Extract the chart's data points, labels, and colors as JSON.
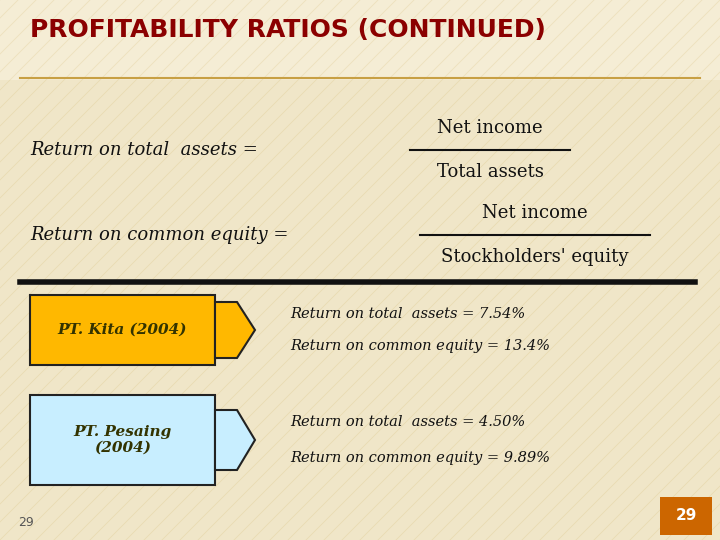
{
  "title": "PROFITABILITY RATIOS (CONTINUED)",
  "title_color": "#8B0000",
  "bg_color": "#F0E6C8",
  "title_fontsize": 18,
  "formula1_left": "Return on total  assets =",
  "formula1_num": "Net income",
  "formula1_den": "Total assets",
  "formula2_left": "Return on common equity =",
  "formula2_num": "Net income",
  "formula2_den": "Stockholders' equity",
  "kita_label": "PT. Kita (2004)",
  "kita_box_color": "#FFB800",
  "kita_text_color": "#333300",
  "kita_result1": "Return on total  assets = 7.54%",
  "kita_result2": "Return on common equity = 13.4%",
  "pesaing_label": "PT. Pesaing\n(2004)",
  "pesaing_box_color": "#C8EEFF",
  "pesaing_text_color": "#333300",
  "pesaing_result1": "Return on total  assets = 4.50%",
  "pesaing_result2": "Return on common equity = 9.89%",
  "page_num": "29",
  "page_num_bg": "#CC6600",
  "divider_color": "#111111",
  "formula_color": "#111111",
  "result_color": "#111111",
  "stripe_color": "#C8A84A",
  "title_line_color": "#C8A044"
}
